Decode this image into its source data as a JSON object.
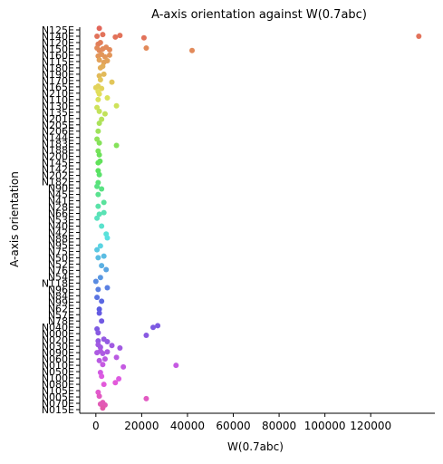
{
  "chart_data": {
    "type": "strip",
    "title": "A-axis orientation against W(0.7abc)",
    "x_label": "W(0.7abc)",
    "y_label": "A-axis orientation",
    "palette": "husl",
    "categories": [
      "N125E",
      "N140E",
      "N120E",
      "N150E",
      "N160E",
      "N115E",
      "N180E",
      "N190E",
      "N170E",
      "N165E",
      "N210E",
      "N110E",
      "N130E",
      "N135E",
      "N201E",
      "N205E",
      "N206E",
      "N144E",
      "N183E",
      "N188E",
      "N200E",
      "N145E",
      "N142E",
      "N202E",
      "N182E",
      "N90E",
      "N45E",
      "N41E",
      "N28E",
      "N66E",
      "N53E",
      "N40E",
      "N42E",
      "N88E",
      "N95E",
      "N75E",
      "N50E",
      "N52E",
      "N76E",
      "N54E",
      "N118E",
      "N96E",
      "N84E",
      "N99E",
      "N62E",
      "N57E",
      "N78E",
      "N040E",
      "N000E",
      "N020E",
      "N030E",
      "N090E",
      "N060E",
      "N010E",
      "N050E",
      "N100E",
      "N080E",
      "N105E",
      "N005E",
      "N070E",
      "N015E"
    ],
    "values": [
      [
        1500
      ],
      [
        500,
        3000,
        8500,
        10500,
        21000,
        141000
      ],
      [
        1000,
        2000
      ],
      [
        500,
        1500,
        3000,
        4500,
        6000,
        22000,
        42000
      ],
      [
        1000,
        2500,
        4000,
        6000
      ],
      [
        1500,
        3500,
        5000
      ],
      [
        2000,
        3000
      ],
      [
        1500,
        3500
      ],
      [
        2000,
        7000
      ],
      [
        0,
        1000,
        2500
      ],
      [
        1000,
        1500
      ],
      [
        1000,
        5000
      ],
      [
        500,
        9000
      ],
      [
        1500,
        4000
      ],
      [
        2500
      ],
      [
        1500
      ],
      [
        1000
      ],
      [
        500
      ],
      [
        1500,
        9000
      ],
      [
        1000
      ],
      [
        1500
      ],
      [
        1000,
        1800
      ],
      [
        1000
      ],
      [
        1500
      ],
      [
        1000
      ],
      [
        500,
        2500
      ],
      [
        1000
      ],
      [
        3500
      ],
      [
        1000
      ],
      [
        1500,
        3500
      ],
      [
        500
      ],
      [
        2500
      ],
      [
        4500
      ],
      [
        5000
      ],
      [
        2000
      ],
      [
        500
      ],
      [
        1000,
        3500
      ],
      [
        2500
      ],
      [
        4500
      ],
      [
        2000
      ],
      [
        0
      ],
      [
        1000,
        5000
      ],
      [
        500
      ],
      [
        2500
      ],
      [
        1500
      ],
      [
        1500
      ],
      [
        2500
      ],
      [
        500,
        25000,
        27000
      ],
      [
        1000,
        22000
      ],
      [
        1000,
        3500,
        5000
      ],
      [
        1000,
        2000,
        7000,
        10500
      ],
      [
        500,
        2000,
        3000,
        5000
      ],
      [
        1500,
        4000,
        9000
      ],
      [
        3000,
        12000,
        35000
      ],
      [
        2000
      ],
      [
        2500,
        10000
      ],
      [
        3500,
        8500
      ],
      [
        1000
      ],
      [
        1500,
        22000
      ],
      [
        2000,
        3000,
        4000
      ],
      [
        3000
      ]
    ],
    "xlim": [
      -7050,
      148000
    ],
    "xticks": [
      0,
      20000,
      40000,
      60000,
      80000,
      100000,
      120000
    ]
  }
}
